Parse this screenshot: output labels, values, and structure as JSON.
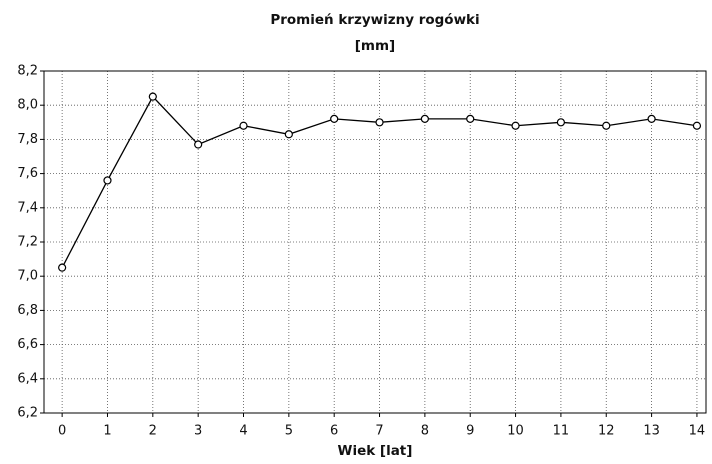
{
  "chart_data": {
    "type": "line",
    "title": "Promień krzywizny rogówki",
    "subtitle": "[mm]",
    "x_label": "Wiek [lat]",
    "x": [
      0,
      1,
      2,
      3,
      4,
      5,
      6,
      7,
      8,
      9,
      10,
      11,
      12,
      13,
      14
    ],
    "series": [
      {
        "name": "Promień krzywizny rogówki",
        "color": "#000000",
        "values": [
          7.05,
          7.56,
          8.05,
          7.77,
          7.88,
          7.83,
          7.92,
          7.9,
          7.92,
          7.92,
          7.88,
          7.9,
          7.88,
          7.92,
          7.88
        ]
      }
    ],
    "xlim": [
      -0.4,
      14.2
    ],
    "xticks": [
      0,
      1,
      2,
      3,
      4,
      5,
      6,
      7,
      8,
      9,
      10,
      11,
      12,
      13,
      14
    ],
    "ylim": [
      6.2,
      8.2
    ],
    "yticks": [
      {
        "value": 6.2,
        "label": "6,2"
      },
      {
        "value": 6.4,
        "label": "6,4"
      },
      {
        "value": 6.6,
        "label": "6,6"
      },
      {
        "value": 6.8,
        "label": "6,8"
      },
      {
        "value": 7.0,
        "label": "7,0"
      },
      {
        "value": 7.2,
        "label": "7,2"
      },
      {
        "value": 7.4,
        "label": "7,4"
      },
      {
        "value": 7.6,
        "label": "7,6"
      },
      {
        "value": 7.8,
        "label": "7,8"
      },
      {
        "value": 8.0,
        "label": "8,0"
      },
      {
        "value": 8.2,
        "label": "8,2"
      }
    ],
    "grid": true
  }
}
